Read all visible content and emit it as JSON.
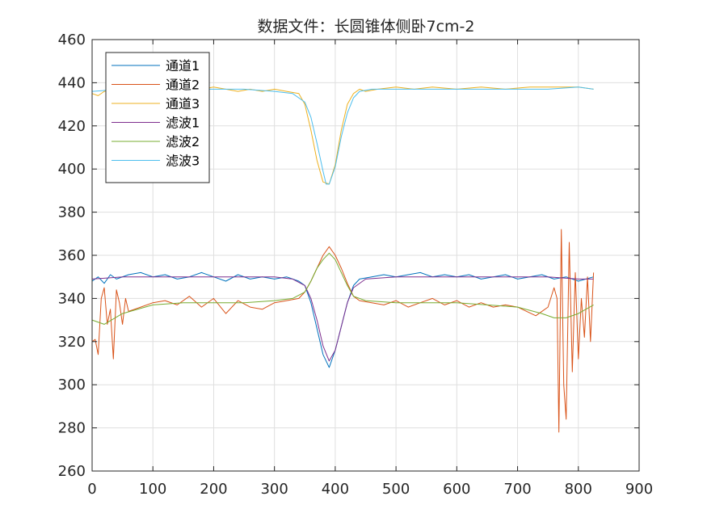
{
  "chart_data": {
    "type": "line",
    "title": "数据文件：长圆锥体侧卧7cm-2",
    "xlabel": "",
    "ylabel": "",
    "xlim": [
      0,
      900
    ],
    "ylim": [
      260,
      460
    ],
    "grid": true,
    "legend_position": "top-left",
    "x_ticks": [
      0,
      100,
      200,
      300,
      400,
      500,
      600,
      700,
      800,
      900
    ],
    "y_ticks": [
      260,
      280,
      300,
      320,
      340,
      360,
      380,
      400,
      420,
      440,
      460
    ],
    "x_tick_labels": [
      "0",
      "100",
      "200",
      "300",
      "400",
      "500",
      "600",
      "700",
      "800",
      "900"
    ],
    "y_tick_labels": [
      "260",
      "280",
      "300",
      "320",
      "340",
      "360",
      "380",
      "400",
      "420",
      "440",
      "460"
    ],
    "series": [
      {
        "name": "通道1",
        "color": "#0072BD",
        "x": [
          0,
          10,
          20,
          30,
          40,
          60,
          80,
          100,
          120,
          140,
          160,
          180,
          200,
          220,
          240,
          260,
          280,
          300,
          320,
          340,
          350,
          360,
          370,
          380,
          390,
          400,
          410,
          420,
          430,
          440,
          460,
          480,
          500,
          520,
          540,
          560,
          580,
          600,
          620,
          640,
          660,
          680,
          700,
          720,
          740,
          760,
          780,
          800,
          825
        ],
        "y": [
          348,
          350,
          347,
          351,
          349,
          351,
          352,
          350,
          351,
          349,
          350,
          352,
          350,
          348,
          351,
          349,
          350,
          349,
          350,
          348,
          346,
          338,
          326,
          314,
          308,
          316,
          327,
          338,
          346,
          349,
          350,
          351,
          350,
          351,
          352,
          350,
          351,
          350,
          351,
          349,
          350,
          351,
          349,
          350,
          351,
          349,
          350,
          348,
          350
        ]
      },
      {
        "name": "通道2",
        "color": "#D95319",
        "x": [
          0,
          5,
          10,
          15,
          20,
          25,
          30,
          35,
          40,
          45,
          50,
          55,
          60,
          80,
          100,
          120,
          140,
          160,
          180,
          200,
          220,
          240,
          260,
          280,
          300,
          320,
          340,
          350,
          360,
          370,
          380,
          390,
          400,
          410,
          420,
          430,
          440,
          460,
          480,
          500,
          520,
          540,
          560,
          580,
          600,
          620,
          640,
          660,
          680,
          700,
          730,
          750,
          760,
          765,
          768,
          772,
          776,
          780,
          785,
          790,
          795,
          800,
          805,
          810,
          815,
          820,
          825
        ],
        "y": [
          320,
          321,
          314,
          340,
          345,
          328,
          335,
          312,
          344,
          338,
          328,
          340,
          334,
          336,
          338,
          339,
          337,
          341,
          336,
          340,
          333,
          339,
          336,
          335,
          338,
          339,
          340,
          343,
          348,
          354,
          360,
          364,
          360,
          354,
          347,
          341,
          339,
          338,
          337,
          339,
          336,
          338,
          340,
          337,
          339,
          336,
          338,
          336,
          337,
          336,
          332,
          336,
          345,
          340,
          278,
          372,
          300,
          284,
          366,
          306,
          352,
          312,
          340,
          322,
          350,
          320,
          352
        ]
      },
      {
        "name": "通道3",
        "color": "#EDB120",
        "x": [
          0,
          10,
          20,
          40,
          60,
          80,
          100,
          120,
          140,
          160,
          180,
          200,
          220,
          240,
          260,
          280,
          300,
          320,
          340,
          350,
          360,
          370,
          380,
          390,
          400,
          410,
          420,
          430,
          440,
          450,
          470,
          500,
          530,
          560,
          600,
          640,
          680,
          720,
          760,
          800,
          825
        ],
        "y": [
          435,
          434,
          436,
          437,
          438,
          436,
          437,
          438,
          437,
          436,
          437,
          438,
          437,
          436,
          437,
          436,
          437,
          436,
          435,
          430,
          418,
          404,
          394,
          393,
          402,
          418,
          430,
          435,
          437,
          436,
          437,
          438,
          437,
          438,
          437,
          438,
          437,
          438,
          438,
          438,
          437
        ]
      },
      {
        "name": "滤波1",
        "color": "#7E2F8E",
        "x": [
          0,
          50,
          100,
          150,
          200,
          250,
          300,
          330,
          350,
          360,
          370,
          380,
          390,
          400,
          410,
          420,
          430,
          450,
          500,
          550,
          600,
          650,
          700,
          750,
          800,
          825
        ],
        "y": [
          349,
          350,
          350,
          350,
          350,
          350,
          350,
          349,
          346,
          340,
          330,
          318,
          311,
          316,
          327,
          338,
          345,
          349,
          350,
          350,
          350,
          350,
          350,
          350,
          349,
          349
        ]
      },
      {
        "name": "滤波2",
        "color": "#77AC30",
        "x": [
          0,
          20,
          50,
          100,
          150,
          200,
          250,
          300,
          330,
          350,
          360,
          370,
          380,
          390,
          400,
          410,
          420,
          430,
          450,
          500,
          550,
          600,
          650,
          700,
          740,
          760,
          780,
          800,
          825
        ],
        "y": [
          330,
          328,
          333,
          337,
          338,
          338,
          338,
          339,
          340,
          343,
          348,
          354,
          358,
          361,
          358,
          352,
          346,
          341,
          339,
          338,
          338,
          338,
          337,
          336,
          333,
          331,
          331,
          333,
          337
        ]
      },
      {
        "name": "滤波3",
        "color": "#4DBEEE",
        "x": [
          0,
          50,
          100,
          150,
          200,
          250,
          300,
          330,
          350,
          360,
          370,
          380,
          385,
          390,
          400,
          410,
          420,
          430,
          440,
          460,
          500,
          550,
          600,
          650,
          700,
          750,
          800,
          825
        ],
        "y": [
          436,
          437,
          437,
          437,
          437,
          437,
          436,
          435,
          431,
          424,
          412,
          399,
          393,
          393,
          401,
          415,
          426,
          433,
          436,
          437,
          437,
          437,
          437,
          437,
          437,
          437,
          438,
          437
        ]
      }
    ]
  }
}
